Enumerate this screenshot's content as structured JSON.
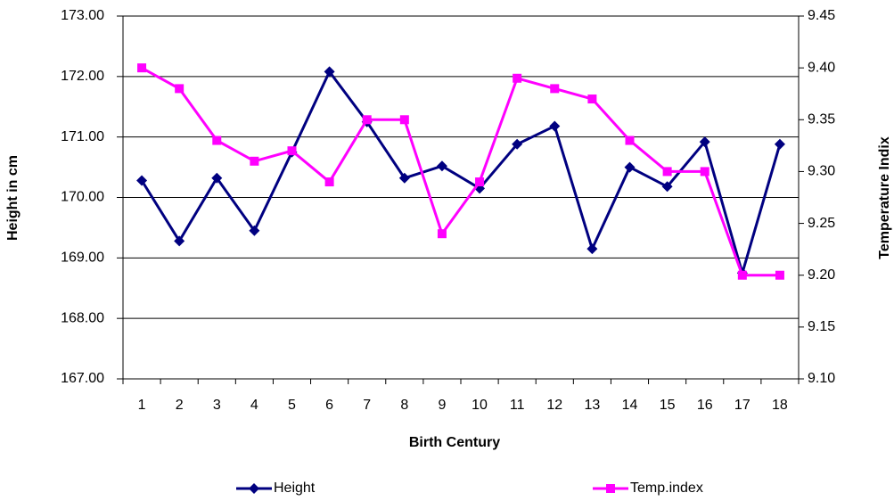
{
  "chart_data": {
    "type": "line",
    "x_label": "Birth Century",
    "y_label": "Height in cm",
    "y2_label": "Temperature Indix",
    "categories": [
      "1",
      "2",
      "3",
      "4",
      "5",
      "6",
      "7",
      "8",
      "9",
      "10",
      "11",
      "12",
      "13",
      "14",
      "15",
      "16",
      "17",
      "18"
    ],
    "series": [
      {
        "name": "Height",
        "color": "#000080",
        "marker": "diamond",
        "values": [
          170.28,
          169.28,
          170.32,
          169.45,
          170.75,
          172.08,
          171.25,
          170.32,
          170.52,
          170.15,
          170.88,
          171.18,
          169.15,
          170.5,
          170.18,
          170.92,
          168.75,
          170.88
        ]
      },
      {
        "name": "Temp.index",
        "color": "#ff00ff",
        "marker": "square",
        "axis": "y2",
        "values": [
          9.4,
          9.38,
          9.33,
          9.31,
          9.32,
          9.29,
          9.35,
          9.35,
          9.24,
          9.29,
          9.39,
          9.38,
          9.37,
          9.33,
          9.3,
          9.3,
          9.2,
          9.2
        ]
      }
    ],
    "ylim": [
      167,
      173
    ],
    "yticks": [
      {
        "value": 167,
        "label": "167.00"
      },
      {
        "value": 168,
        "label": "168.00"
      },
      {
        "value": 169,
        "label": "169.00"
      },
      {
        "value": 170,
        "label": "170.00"
      },
      {
        "value": 171,
        "label": "171.00"
      },
      {
        "value": 172,
        "label": "172.00"
      },
      {
        "value": 173,
        "label": "173.00"
      }
    ],
    "y2lim": [
      9.1,
      9.45
    ],
    "y2ticks": [
      {
        "value": 9.1,
        "label": "9.10"
      },
      9.15,
      {
        "value": 9.2,
        "label": "9.20"
      },
      9.25,
      {
        "value": 9.3,
        "label": "9.30"
      },
      9.35,
      {
        "value": 9.4,
        "label": "9.40"
      },
      9.45
    ],
    "grid": true,
    "legend": "bottom"
  }
}
